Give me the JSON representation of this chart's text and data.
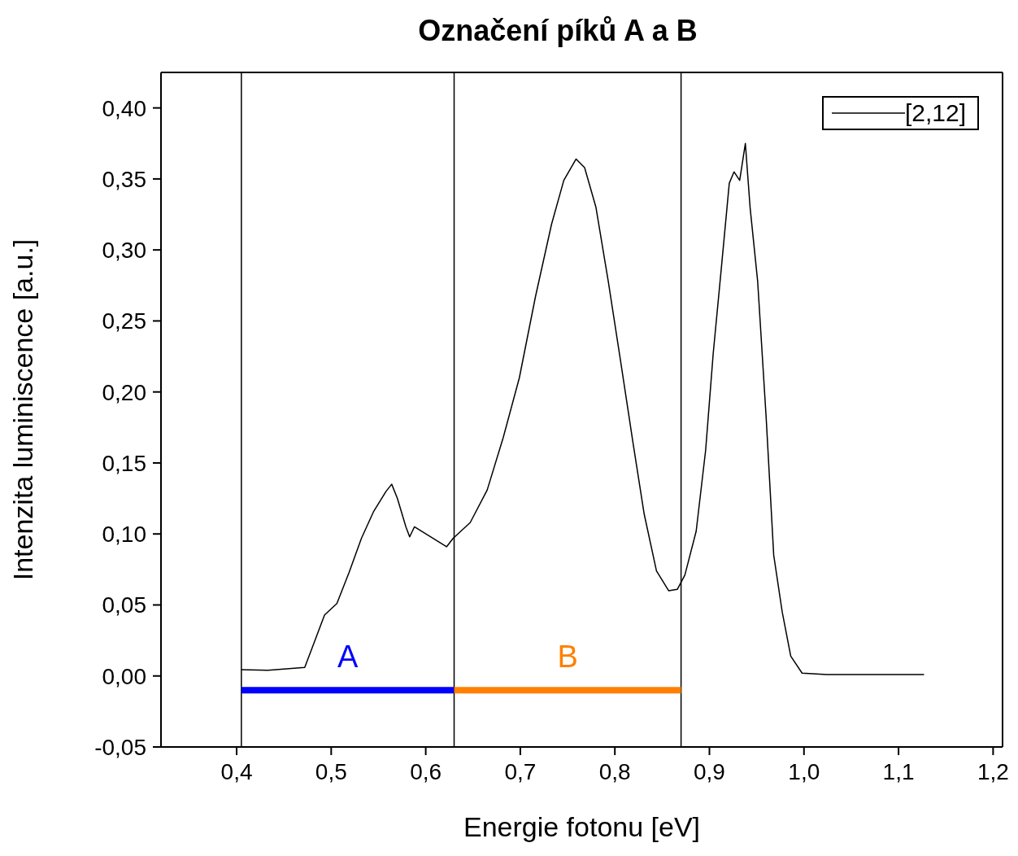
{
  "chart_data": {
    "type": "line",
    "title": "Označení píků A a B",
    "xlabel": "Energie fotonu [eV]",
    "ylabel": "Intenzita luminiscence [a.u.]",
    "xlim": [
      0.32,
      1.21
    ],
    "ylim": [
      -0.05,
      0.425
    ],
    "xticks": [
      {
        "value": 0.4,
        "label": "0,4"
      },
      {
        "value": 0.5,
        "label": "0,5"
      },
      {
        "value": 0.6,
        "label": "0,6"
      },
      {
        "value": 0.7,
        "label": "0,7"
      },
      {
        "value": 0.8,
        "label": "0,8"
      },
      {
        "value": 0.9,
        "label": "0,9"
      },
      {
        "value": 1.0,
        "label": "1,0"
      },
      {
        "value": 1.1,
        "label": "1,1"
      },
      {
        "value": 1.2,
        "label": "1,2"
      }
    ],
    "yticks": [
      {
        "value": -0.05,
        "label": "-0,05"
      },
      {
        "value": 0,
        "label": "0,00"
      },
      {
        "value": 0.05,
        "label": "0,05"
      },
      {
        "value": 0.1,
        "label": "0,10"
      },
      {
        "value": 0.15,
        "label": "0,15"
      },
      {
        "value": 0.2,
        "label": "0,20"
      },
      {
        "value": 0.25,
        "label": "0,25"
      },
      {
        "value": 0.3,
        "label": "0,30"
      },
      {
        "value": 0.35,
        "label": "0,35"
      },
      {
        "value": 0.4,
        "label": "0,40"
      }
    ],
    "grid": false,
    "legend": "top right",
    "marker": "none",
    "line_style": "solid",
    "ref_lines": [
      {
        "axis": "x",
        "value": 0.405,
        "color": "#000000"
      },
      {
        "axis": "x",
        "value": 0.63,
        "color": "#000000"
      },
      {
        "axis": "x",
        "value": 0.87,
        "color": "#000000"
      }
    ],
    "series": [
      {
        "name": "[2,12]",
        "color": "#000000",
        "x": [
          0.405,
          0.433,
          0.472,
          0.48,
          0.493,
          0.506,
          0.519,
          0.532,
          0.545,
          0.558,
          0.564,
          0.57,
          0.579,
          0.583,
          0.588,
          0.605,
          0.622,
          0.629,
          0.647,
          0.665,
          0.682,
          0.699,
          0.716,
          0.733,
          0.746,
          0.759,
          0.768,
          0.78,
          0.793,
          0.806,
          0.819,
          0.831,
          0.844,
          0.857,
          0.866,
          0.874,
          0.886,
          0.896,
          0.904,
          0.913,
          0.921,
          0.926,
          0.932,
          0.938,
          0.943,
          0.951,
          0.96,
          0.968,
          0.977,
          0.986,
          0.998,
          1.024,
          1.127
        ],
        "values": [
          0.0045,
          0.004,
          0.006,
          0.02,
          0.043,
          0.051,
          0.073,
          0.097,
          0.116,
          0.13,
          0.135,
          0.125,
          0.105,
          0.098,
          0.105,
          0.098,
          0.091,
          0.097,
          0.108,
          0.131,
          0.168,
          0.21,
          0.267,
          0.318,
          0.349,
          0.364,
          0.358,
          0.33,
          0.278,
          0.222,
          0.165,
          0.114,
          0.074,
          0.06,
          0.061,
          0.071,
          0.102,
          0.159,
          0.227,
          0.29,
          0.347,
          0.355,
          0.349,
          0.375,
          0.33,
          0.278,
          0.182,
          0.085,
          0.045,
          0.014,
          0.002,
          0.001,
          0.001
        ]
      },
      {
        "name": "A",
        "color": "#0000ff",
        "x": [
          0.405,
          0.63
        ],
        "values": [
          -0.01,
          -0.01
        ]
      },
      {
        "name": "B",
        "color": "#ff8000",
        "x": [
          0.63,
          0.87
        ],
        "values": [
          -0.01,
          -0.01
        ]
      }
    ]
  }
}
